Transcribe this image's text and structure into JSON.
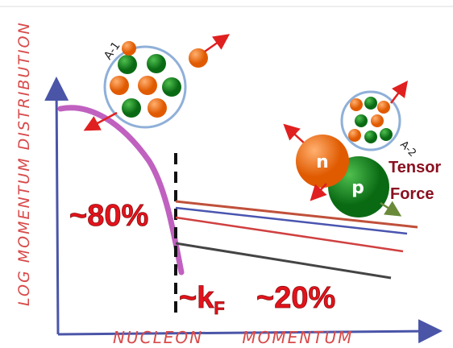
{
  "diagram": {
    "y_axis_label": "LOG MOMENTUM DISTRIBUTION",
    "x_axis_label": "NUCLEON MOMENTUM",
    "low_share": "~80%",
    "high_share": "~20%",
    "fermi_mark": "~k",
    "fermi_subscript": "F",
    "nucleus_a1": "A-1",
    "nucleus_a2": "A-2",
    "neutron": "n",
    "proton": "p",
    "force_line1": "Tensor",
    "force_line2": "Force"
  }
}
